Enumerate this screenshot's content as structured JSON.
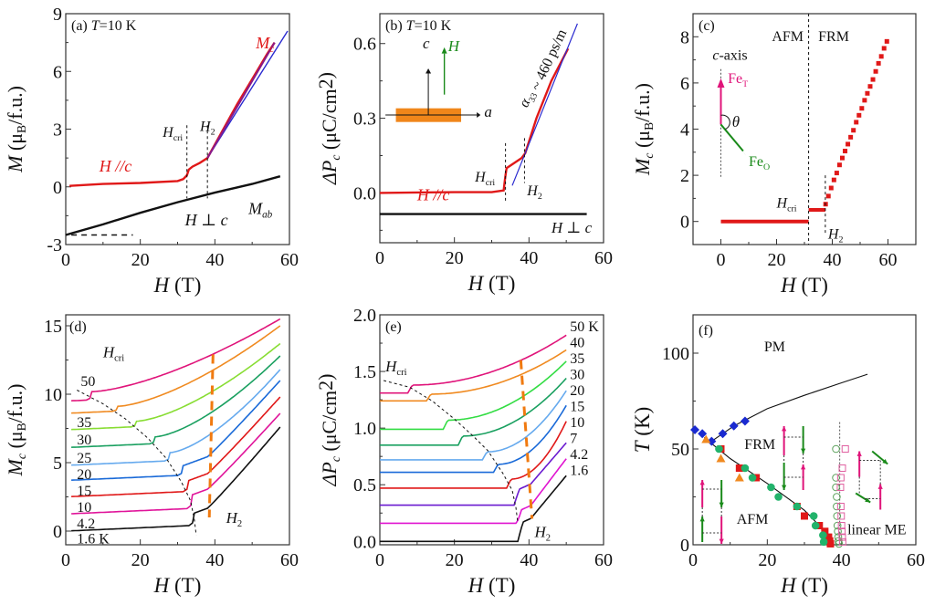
{
  "figure": {
    "colors": {
      "red": "#e01818",
      "blue": "#2a2ad0",
      "black": "#111111",
      "magenta": "#e0147a",
      "green": "#1a8a1a",
      "orange": "#f07a10",
      "teal": "#22b36b",
      "navy": "#1a2ad0"
    }
  },
  "chart_data": [
    {
      "id": "a",
      "type": "line",
      "panel_label": "(a)",
      "title": "T=10 K",
      "xlabel": "H (T)",
      "ylabel": "M (μB/f.u.)",
      "xlim": [
        0,
        60
      ],
      "ylim": [
        -3,
        9
      ],
      "xticks": [
        0,
        20,
        40,
        60
      ],
      "yticks": [
        -3,
        0,
        3,
        6,
        9
      ],
      "series": [
        {
          "name": "H //c",
          "color": "#e01818",
          "x": [
            1,
            10,
            20,
            30,
            31.5,
            32.5,
            33,
            34,
            36,
            38,
            42,
            46,
            50,
            54,
            56
          ],
          "y": [
            0.05,
            0.15,
            0.2,
            0.3,
            0.4,
            0.6,
            0.9,
            1.05,
            1.25,
            1.5,
            2.9,
            4.3,
            5.6,
            6.9,
            7.5
          ]
        },
        {
          "name": "M_c fit",
          "color": "#2a2ad0",
          "x": [
            38,
            59.5
          ],
          "y": [
            1.5,
            8.1
          ]
        },
        {
          "name": "H ⊥ c",
          "color": "#111111",
          "x": [
            0,
            10,
            20,
            30,
            40,
            50,
            57.5
          ],
          "y": [
            -2.5,
            -1.95,
            -1.35,
            -0.8,
            -0.3,
            0.15,
            0.55
          ]
        }
      ],
      "annotations": [
        "Mc",
        "Mab",
        "H //c",
        "H ⊥ c",
        "Hcri",
        "H2"
      ],
      "vlines": [
        {
          "x": 32.5,
          "label": "Hcri"
        },
        {
          "x": 38,
          "label": "H2"
        }
      ]
    },
    {
      "id": "b",
      "type": "line",
      "panel_label": "(b)",
      "title": "T=10 K",
      "xlabel": "H (T)",
      "ylabel": "ΔPc (μC/cm²)",
      "xlim": [
        0,
        60
      ],
      "ylim": [
        -0.2,
        0.72
      ],
      "xticks": [
        0,
        20,
        40,
        60
      ],
      "yticks": [
        0.0,
        0.3,
        0.6
      ],
      "series": [
        {
          "name": "H //c",
          "color": "#e01818",
          "x": [
            0,
            10,
            20,
            30,
            33.2,
            33.6,
            34,
            36,
            38,
            39,
            42,
            46,
            50.5
          ],
          "y": [
            0,
            0.002,
            0.003,
            0.003,
            0.01,
            0.06,
            0.1,
            0.12,
            0.14,
            0.16,
            0.3,
            0.45,
            0.58
          ]
        },
        {
          "name": "α33 fit",
          "color": "#2a2ad0",
          "x": [
            35.5,
            53
          ],
          "y": [
            0.03,
            0.68
          ]
        },
        {
          "name": "H ⊥ c",
          "color": "#111111",
          "x": [
            0,
            55.5
          ],
          "y": [
            -0.085,
            -0.085
          ]
        }
      ],
      "annotations": [
        "α33 ~ 460 ps/m",
        "H //c",
        "H ⊥ c",
        "Hcri",
        "H2"
      ],
      "inset": {
        "axes": [
          "c",
          "a"
        ],
        "field": "H"
      },
      "vlines": [
        {
          "x": 33.7,
          "label": "Hcri"
        },
        {
          "x": 38.8,
          "label": "H2"
        }
      ]
    },
    {
      "id": "c",
      "type": "scatter",
      "panel_label": "(c)",
      "xlabel": "H (T)",
      "ylabel": "Mc (μB/f.u.)",
      "xlim": [
        -10,
        70
      ],
      "ylim": [
        -1,
        9
      ],
      "xticks": [
        0,
        20,
        40,
        60
      ],
      "yticks": [
        0,
        2,
        4,
        6,
        8
      ],
      "region_labels": [
        "AFM",
        "FRM"
      ],
      "segments": [
        {
          "x0": 0,
          "x1": 31.5,
          "y": 0
        },
        {
          "x0": 31.5,
          "x1": 37.5,
          "y": 0.5
        }
      ],
      "points": {
        "x": [
          37.6,
          38.6,
          39.6,
          40.6,
          41.6,
          42.6,
          43.6,
          44.6,
          45.6,
          46.6,
          47.6,
          48.6,
          49.6,
          50.6,
          51.6,
          52.6,
          53.6,
          54.6,
          55.6,
          56.6,
          57.6,
          58.6,
          59.6
        ],
        "y": [
          0.75,
          1.1,
          1.45,
          1.8,
          2.1,
          2.45,
          2.75,
          3.05,
          3.35,
          3.65,
          3.95,
          4.3,
          4.6,
          4.9,
          5.25,
          5.55,
          5.85,
          6.15,
          6.5,
          6.85,
          7.15,
          7.5,
          7.8
        ]
      },
      "annotations": [
        "c-axis",
        "FeT",
        "FeO",
        "θ",
        "Hcri",
        "H2"
      ],
      "vlines": [
        {
          "x": 31.5
        },
        {
          "x": 37.5
        }
      ]
    },
    {
      "id": "d",
      "type": "line",
      "panel_label": "(d)",
      "xlabel": "H (T)",
      "ylabel": "Mc (μB/f.u.)",
      "xlim": [
        0,
        60
      ],
      "ylim": [
        -1,
        15.8
      ],
      "xticks": [
        0,
        20,
        40,
        60
      ],
      "yticks": [
        0,
        5,
        10,
        15
      ],
      "series": [
        {
          "name": "1.6 K",
          "color": "#111111",
          "offset": 0.0,
          "hcri": 34.5,
          "jump": 0.9
        },
        {
          "name": "4.2",
          "color": "#e0149a",
          "offset": 1.25,
          "hcri": 34,
          "jump": 1.0
        },
        {
          "name": "10",
          "color": "#e01818",
          "offset": 2.5,
          "hcri": 33,
          "jump": 0.8
        },
        {
          "name": "15",
          "color": "#1a6ad8",
          "offset": 3.7,
          "hcri": 31.5,
          "jump": 0.7
        },
        {
          "name": "20",
          "color": "#66aaee",
          "offset": 4.8,
          "hcri": 28,
          "jump": 0.6
        },
        {
          "name": "25",
          "color": "#1aa060",
          "offset": 6.1,
          "hcri": 24,
          "jump": 0.5
        },
        {
          "name": "30",
          "color": "#88dd33",
          "offset": 7.4,
          "hcri": 19,
          "jump": 0.4
        },
        {
          "name": "35",
          "color": "#f08a20",
          "offset": 8.6,
          "hcri": 14,
          "jump": 0.35
        },
        {
          "name": "50",
          "color": "#e0147a",
          "offset": 9.5,
          "hcri": 7,
          "jump": 0.6
        }
      ],
      "series_end_values": [
        7.6,
        8.6,
        9.8,
        11.0,
        11.8,
        12.8,
        13.7,
        15.0,
        15.5
      ],
      "series_labels": [
        "50",
        "35",
        "30",
        "25",
        "20",
        "15",
        "10",
        "4.2",
        "1.6 K"
      ],
      "annotations": [
        "Hcri",
        "H2"
      ]
    },
    {
      "id": "e",
      "type": "line",
      "panel_label": "(e)",
      "xlabel": "H (T)",
      "ylabel": "ΔPc (μC/cm²)",
      "xlim": [
        0,
        60
      ],
      "ylim": [
        -0.03,
        2.0
      ],
      "xticks": [
        0,
        20,
        40,
        60
      ],
      "yticks": [
        0.0,
        0.5,
        1.0,
        1.5,
        2.0
      ],
      "series": [
        {
          "name": "1.6",
          "color": "#111111",
          "offset": 0.0,
          "hcri": 37,
          "jump": 0.15,
          "end": 0.58
        },
        {
          "name": "4.2",
          "color": "#e014d0",
          "offset": 0.16,
          "hcri": 36.7,
          "jump": 0.1,
          "end": 0.73
        },
        {
          "name": "7",
          "color": "#6a1ad0",
          "offset": 0.32,
          "hcri": 36,
          "jump": 0.12,
          "end": 0.87
        },
        {
          "name": "10",
          "color": "#e01818",
          "offset": 0.47,
          "hcri": 34,
          "jump": 0.08,
          "end": 1.06
        },
        {
          "name": "15",
          "color": "#1a6ad8",
          "offset": 0.61,
          "hcri": 30.5,
          "jump": 0.07,
          "end": 1.2
        },
        {
          "name": "20",
          "color": "#66aaee",
          "offset": 0.72,
          "hcri": 27.5,
          "jump": 0.07,
          "end": 1.33
        },
        {
          "name": "30",
          "color": "#1aa060",
          "offset": 0.85,
          "hcri": 21,
          "jump": 0.08,
          "end": 1.44
        },
        {
          "name": "35",
          "color": "#33dd44",
          "offset": 0.99,
          "hcri": 17,
          "jump": 0.08,
          "end": 1.59
        },
        {
          "name": "40",
          "color": "#f08a20",
          "offset": 1.24,
          "hcri": 12.5,
          "jump": 0.06,
          "end": 1.69
        },
        {
          "name": "50 K",
          "color": "#e0147a",
          "offset": 1.31,
          "hcri": 7.5,
          "jump": 0.07,
          "end": 1.82
        }
      ],
      "series_labels": [
        "50 K",
        "40",
        "35",
        "30",
        "20",
        "15",
        "10",
        "7",
        "4.2",
        "1.6"
      ],
      "annotations": [
        "Hcri",
        "H2"
      ]
    },
    {
      "id": "f",
      "type": "scatter",
      "panel_label": "(f)",
      "xlabel": "H (T)",
      "ylabel": "T (K)",
      "xlim": [
        0,
        60
      ],
      "ylim": [
        0,
        120
      ],
      "xticks": [
        0,
        20,
        40,
        60
      ],
      "yticks": [
        0,
        50,
        100
      ],
      "region_labels": [
        "PM",
        "FRM",
        "AFM",
        "linear ME"
      ],
      "series": [
        {
          "name": "diamonds",
          "marker": "diamond",
          "color": "#1a2ad0",
          "x": [
            0.5,
            2.5,
            5,
            8,
            11,
            14
          ],
          "y": [
            60,
            58,
            54,
            58,
            62,
            64.5
          ]
        },
        {
          "name": "triangles",
          "marker": "triangle",
          "color": "#f08a20",
          "x": [
            3.5,
            7.5,
            12.5
          ],
          "y": [
            55,
            45,
            35
          ]
        },
        {
          "name": "red squares",
          "marker": "square",
          "color": "#e01818",
          "x": [
            7.5,
            12.5,
            17,
            28,
            30,
            34,
            35.5,
            36.5,
            36.8,
            37
          ],
          "y": [
            50,
            40,
            35,
            20,
            15,
            10,
            7,
            4,
            2,
            0.5
          ]
        },
        {
          "name": "green circles",
          "marker": "circle",
          "color": "#22b36b",
          "x": [
            7,
            14,
            16,
            21,
            23,
            28,
            32.5,
            33,
            35,
            35.2
          ],
          "y": [
            50,
            40,
            35,
            30,
            25,
            20,
            15,
            10,
            5,
            1.5
          ]
        },
        {
          "name": "open circles",
          "marker": "open-circle",
          "color": "#5aa05a",
          "x": [
            38.5,
            38.5,
            38.5,
            38.7,
            38.7,
            38.8,
            38.9,
            39,
            39.1,
            39.2,
            39.3
          ],
          "y": [
            50,
            35,
            30,
            25,
            20,
            15,
            10,
            7,
            4,
            2,
            0.5
          ]
        },
        {
          "name": "open squares",
          "marker": "open-square",
          "color": "#e060a0",
          "x": [
            41,
            40.2,
            39.8,
            39.7,
            39.8,
            39.9,
            40,
            40.1,
            40.2,
            40.3
          ],
          "y": [
            50,
            40,
            35,
            30,
            20,
            15,
            10,
            7,
            4,
            1.5
          ]
        }
      ],
      "lines": [
        {
          "name": "PM boundary",
          "x": [
            5,
            8,
            11,
            14,
            20,
            30,
            40,
            47
          ],
          "y": [
            54,
            58,
            62,
            65,
            71,
            78,
            84.5,
            89
          ]
        },
        {
          "name": "AFM-FRM boundary",
          "x": [
            3,
            10,
            20,
            30,
            34,
            36,
            37
          ],
          "y": [
            56,
            45,
            32,
            18,
            10,
            4,
            0
          ]
        }
      ]
    }
  ]
}
